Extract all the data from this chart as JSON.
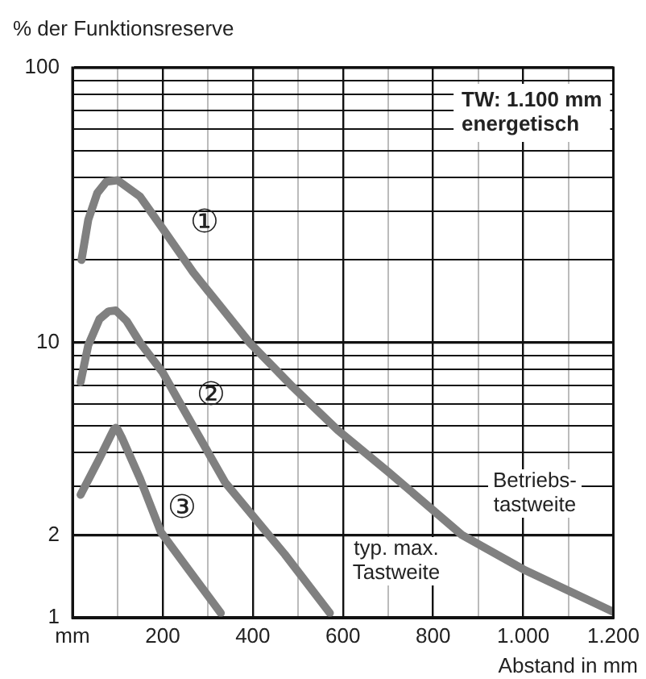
{
  "chart_data": {
    "type": "line",
    "ylabel": "% der Funktionsreserve",
    "xlabel": "Abstand in mm",
    "log": "y",
    "grid": true,
    "legend": false,
    "marker": "none",
    "line_style": "solid",
    "xlim": [
      0,
      1200
    ],
    "ylim": [
      1,
      100
    ],
    "xticks": [
      {
        "value": 0,
        "label": "mm"
      },
      {
        "value": 100,
        "label": null
      },
      200,
      {
        "value": 300,
        "label": null
      },
      400,
      {
        "value": 500,
        "label": null
      },
      600,
      {
        "value": 700,
        "label": null
      },
      800,
      {
        "value": 900,
        "label": null
      },
      {
        "value": 1000,
        "label": "1.000"
      },
      {
        "value": 1100,
        "label": null
      },
      {
        "value": 1200,
        "label": "1.200"
      }
    ],
    "yticks": [
      1,
      2,
      {
        "value": 3,
        "label": null
      },
      {
        "value": 4,
        "label": null
      },
      {
        "value": 5,
        "label": null
      },
      {
        "value": 6,
        "label": null
      },
      {
        "value": 7,
        "label": null
      },
      {
        "value": 8,
        "label": null
      },
      {
        "value": 9,
        "label": null
      },
      10,
      {
        "value": 20,
        "label": null
      },
      {
        "value": 30,
        "label": null
      },
      {
        "value": 40,
        "label": null
      },
      {
        "value": 50,
        "label": null
      },
      {
        "value": 60,
        "label": null
      },
      {
        "value": 70,
        "label": null
      },
      {
        "value": 80,
        "label": null
      },
      {
        "value": 90,
        "label": null
      },
      100
    ],
    "series": [
      {
        "color": "#808080",
        "x": [
          20,
          35,
          55,
          75,
          100,
          150,
          200,
          268,
          314,
          393,
          489,
          589,
          700,
          864,
          1000,
          1200
        ],
        "values": [
          20,
          28,
          35,
          38.5,
          39,
          34,
          26,
          18,
          14.5,
          10,
          6.9,
          4.8,
          3.4,
          2.0,
          1.5,
          1.05
        ]
      },
      {
        "color": "#808080",
        "x": [
          18,
          35,
          60,
          80,
          96,
          120,
          150,
          200,
          232,
          339,
          471,
          571
        ],
        "values": [
          7.2,
          9.8,
          12.2,
          13,
          13.1,
          12,
          10,
          7.8,
          6.3,
          3.1,
          1.7,
          1.04
        ]
      },
      {
        "color": "#808080",
        "x": [
          18,
          60,
          85,
          92,
          96,
          100,
          110,
          150,
          196,
          257,
          329
        ],
        "values": [
          2.8,
          3.8,
          4.6,
          4.85,
          4.9,
          4.85,
          4.5,
          3.2,
          2.05,
          1.5,
          1.04
        ]
      }
    ],
    "annotations": [
      "TW: 1.100 mm\nenergetisch",
      "Betriebs-\ntastweite",
      "typ. max.\nTastweite",
      "①",
      "②",
      "③"
    ]
  }
}
